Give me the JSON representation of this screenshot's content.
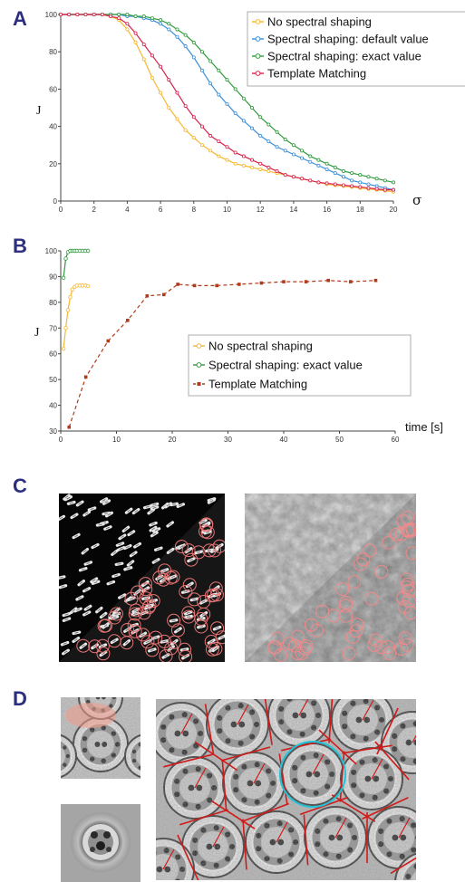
{
  "panels": {
    "a": "A",
    "b": "B",
    "c": "C",
    "d": "D"
  },
  "colors": {
    "yellow": "#f5b731",
    "blue": "#3a8ed8",
    "green": "#2f9a3d",
    "red": "#d6204a",
    "brown": "#b13a1b",
    "letter": "#2b2f7e"
  },
  "chart_data": [
    {
      "type": "line",
      "title": "",
      "xlabel": "σ",
      "ylabel": "J",
      "xlim": [
        0,
        20
      ],
      "ylim": [
        0,
        100
      ],
      "xticks": [
        0,
        2,
        4,
        6,
        8,
        10,
        12,
        14,
        16,
        18,
        20
      ],
      "yticks": [
        0,
        20,
        40,
        60,
        80,
        100
      ],
      "legend_position": "top-right",
      "series": [
        {
          "name": "No spectral shaping",
          "color": "#f5b731",
          "x": [
            0,
            0.5,
            1,
            1.5,
            2,
            2.5,
            3,
            3.5,
            4,
            4.5,
            5,
            5.5,
            6,
            6.5,
            7,
            7.5,
            8,
            8.5,
            9,
            9.5,
            10,
            10.5,
            11,
            11.5,
            12,
            12.5,
            13,
            13.5,
            14,
            14.5,
            15,
            15.5,
            16,
            16.5,
            17,
            17.5,
            18,
            18.5,
            19,
            19.5,
            20
          ],
          "y": [
            100,
            100,
            100,
            100,
            100,
            100,
            99,
            97,
            92,
            85,
            76,
            66,
            58,
            50,
            44,
            38,
            34,
            30,
            27,
            24,
            22,
            20,
            19,
            18,
            17,
            16,
            15,
            14,
            13,
            12,
            11,
            10,
            9,
            8.5,
            8,
            7.5,
            7,
            6.5,
            6,
            5.5,
            5
          ]
        },
        {
          "name": "Spectral shaping: default value",
          "color": "#3a8ed8",
          "x": [
            0,
            0.5,
            1,
            1.5,
            2,
            2.5,
            3,
            3.5,
            4,
            4.5,
            5,
            5.5,
            6,
            6.5,
            7,
            7.5,
            8,
            8.5,
            9,
            9.5,
            10,
            10.5,
            11,
            11.5,
            12,
            12.5,
            13,
            13.5,
            14,
            14.5,
            15,
            15.5,
            16,
            16.5,
            17,
            17.5,
            18,
            18.5,
            19,
            19.5,
            20
          ],
          "y": [
            100,
            100,
            100,
            100,
            100,
            100,
            100,
            100,
            99,
            99,
            98,
            97,
            95,
            92,
            88,
            83,
            77,
            70,
            63,
            57,
            52,
            47,
            43,
            39,
            35,
            32,
            29,
            27,
            25,
            23,
            21,
            19,
            17,
            15,
            13,
            11,
            10,
            9,
            8,
            7,
            6
          ]
        },
        {
          "name": "Spectral shaping: exact value",
          "color": "#2f9a3d",
          "x": [
            0,
            0.5,
            1,
            1.5,
            2,
            2.5,
            3,
            3.5,
            4,
            4.5,
            5,
            5.5,
            6,
            6.5,
            7,
            7.5,
            8,
            8.5,
            9,
            9.5,
            10,
            10.5,
            11,
            11.5,
            12,
            12.5,
            13,
            13.5,
            14,
            14.5,
            15,
            15.5,
            16,
            16.5,
            17,
            17.5,
            18,
            18.5,
            19,
            19.5,
            20
          ],
          "y": [
            100,
            100,
            100,
            100,
            100,
            100,
            100,
            100,
            100,
            99,
            99,
            98,
            97,
            95,
            92,
            89,
            85,
            80,
            75,
            70,
            65,
            60,
            55,
            50,
            45,
            41,
            37,
            33,
            30,
            27,
            24,
            22,
            20,
            18,
            16,
            15,
            14,
            13,
            12,
            11,
            10
          ]
        },
        {
          "name": "Template Matching",
          "color": "#d6204a",
          "x": [
            0,
            0.5,
            1,
            1.5,
            2,
            2.5,
            3,
            3.5,
            4,
            4.5,
            5,
            5.5,
            6,
            6.5,
            7,
            7.5,
            8,
            8.5,
            9,
            9.5,
            10,
            10.5,
            11,
            11.5,
            12,
            12.5,
            13,
            13.5,
            14,
            14.5,
            15,
            15.5,
            16,
            16.5,
            17,
            17.5,
            18,
            18.5,
            19,
            19.5,
            20
          ],
          "y": [
            100,
            100,
            100,
            100,
            100,
            100,
            99,
            98,
            95,
            90,
            84,
            78,
            72,
            65,
            58,
            51,
            45,
            40,
            35,
            32,
            29,
            26,
            24,
            22,
            20,
            18,
            16,
            14,
            13,
            12,
            11,
            10,
            9.5,
            9,
            8.5,
            8,
            7.5,
            7,
            6.5,
            6,
            6
          ]
        }
      ]
    },
    {
      "type": "line",
      "title": "",
      "xlabel": "time [s]",
      "ylabel": "J",
      "xlim": [
        0,
        60
      ],
      "ylim": [
        30,
        100
      ],
      "xticks": [
        0,
        10,
        20,
        30,
        40,
        50,
        60
      ],
      "yticks": [
        30,
        40,
        50,
        60,
        70,
        80,
        90,
        100
      ],
      "legend_position": "center-right",
      "series": [
        {
          "name": "No spectral shaping",
          "color": "#f5b731",
          "style": "solid",
          "x": [
            0.5,
            0.9,
            1.3,
            1.7,
            2.1,
            2.5,
            2.9,
            3.4,
            3.9,
            4.4,
            4.9
          ],
          "y": [
            62,
            70,
            77,
            82,
            85,
            86,
            86.5,
            86.5,
            86.5,
            86.5,
            86.3
          ]
        },
        {
          "name": "Spectral shaping: exact value",
          "color": "#2f9a3d",
          "style": "solid",
          "x": [
            0.5,
            0.9,
            1.3,
            1.7,
            2.1,
            2.5,
            2.9,
            3.4,
            3.9,
            4.4,
            4.9
          ],
          "y": [
            89.5,
            97,
            99.5,
            100,
            100,
            100,
            100,
            100,
            100,
            100,
            100
          ]
        },
        {
          "name": "Template Matching",
          "color": "#b13a1b",
          "style": "dashed",
          "x": [
            1.5,
            4.5,
            8.5,
            12,
            15.5,
            18.5,
            21,
            24,
            28,
            32,
            36,
            40,
            44,
            48,
            52,
            56.5
          ],
          "y": [
            31.5,
            51,
            65,
            73,
            82.5,
            83,
            87,
            86.5,
            86.5,
            87,
            87.5,
            88,
            88,
            88.5,
            88,
            88.5
          ]
        }
      ]
    }
  ]
}
